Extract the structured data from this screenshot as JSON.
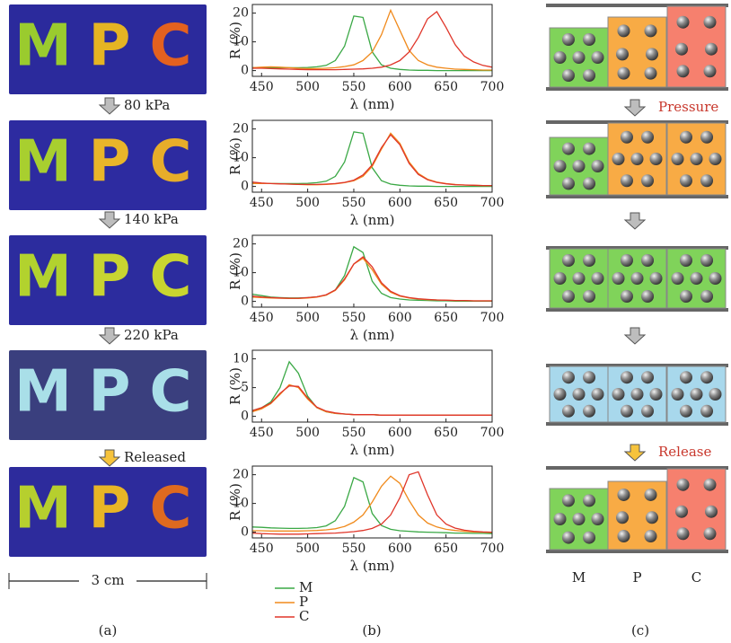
{
  "chart_data": [
    {
      "type": "line",
      "xlabel": "λ (nm)",
      "ylabel": "R (%)",
      "legend": true,
      "x": [
        440,
        450,
        460,
        470,
        480,
        490,
        500,
        510,
        520,
        530,
        540,
        550,
        560,
        570,
        580,
        590,
        600,
        610,
        620,
        630,
        640,
        650,
        660,
        670,
        680,
        690,
        700
      ],
      "xlim": [
        440,
        700
      ],
      "xticks": [
        450,
        500,
        550,
        600,
        650,
        700
      ],
      "ylim": [
        -2,
        23
      ],
      "yticks": [
        0,
        10,
        20
      ],
      "series": [
        {
          "name": "M",
          "color": "#3aa845",
          "values": [
            1.0,
            1.0,
            1.0,
            1.0,
            1.0,
            1.0,
            1.1,
            1.3,
            1.8,
            3.5,
            8.5,
            19.0,
            18.5,
            6.5,
            2.0,
            0.8,
            0.4,
            0.2,
            0.1,
            0.1,
            0,
            0,
            0,
            0,
            0,
            0,
            0
          ]
        },
        {
          "name": "P",
          "color": "#f08a1c",
          "values": [
            1.0,
            1.2,
            1.3,
            1.2,
            1.0,
            0.8,
            0.7,
            0.7,
            0.8,
            1.0,
            1.4,
            2.0,
            3.5,
            6.5,
            12.5,
            21.0,
            14.0,
            7.0,
            3.5,
            2.0,
            1.2,
            0.8,
            0.5,
            0.4,
            0.3,
            0.2,
            0.2
          ]
        },
        {
          "name": "C",
          "color": "#e0362a",
          "values": [
            0.8,
            0.8,
            0.7,
            0.6,
            0.5,
            0.4,
            0.3,
            0.3,
            0.3,
            0.3,
            0.4,
            0.5,
            0.6,
            0.8,
            1.2,
            2.0,
            3.5,
            6.5,
            11.5,
            18.0,
            20.5,
            15.0,
            9.0,
            5.0,
            3.0,
            1.8,
            1.2
          ]
        }
      ]
    },
    {
      "type": "line",
      "xlabel": "λ (nm)",
      "ylabel": "R (%)",
      "legend": false,
      "x": [
        440,
        450,
        460,
        470,
        480,
        490,
        500,
        510,
        520,
        530,
        540,
        550,
        560,
        570,
        580,
        590,
        600,
        610,
        620,
        630,
        640,
        650,
        660,
        670,
        680,
        690,
        700
      ],
      "xlim": [
        440,
        700
      ],
      "xticks": [
        450,
        500,
        550,
        600,
        650,
        700
      ],
      "ylim": [
        -2,
        23
      ],
      "yticks": [
        0,
        10,
        20
      ],
      "series": [
        {
          "name": "M",
          "color": "#3aa845",
          "values": [
            1.0,
            1.0,
            1.0,
            1.0,
            1.0,
            1.0,
            1.1,
            1.3,
            1.8,
            3.5,
            8.5,
            19.0,
            18.5,
            6.5,
            2.0,
            0.8,
            0.4,
            0.2,
            0.1,
            0.1,
            0,
            0,
            0,
            0,
            0,
            0,
            0
          ]
        },
        {
          "name": "P",
          "color": "#f08a1c",
          "values": [
            1.0,
            1.0,
            1.0,
            0.9,
            0.8,
            0.7,
            0.6,
            0.6,
            0.7,
            0.9,
            1.3,
            2.0,
            3.5,
            7.0,
            13.0,
            18.5,
            15.0,
            8.5,
            4.5,
            2.5,
            1.5,
            1.0,
            0.7,
            0.5,
            0.4,
            0.3,
            0.3
          ]
        },
        {
          "name": "C",
          "color": "#e0362a",
          "values": [
            1.5,
            1.2,
            1.0,
            0.9,
            0.8,
            0.7,
            0.7,
            0.7,
            0.8,
            1.0,
            1.4,
            2.2,
            4.0,
            7.5,
            13.5,
            18.0,
            14.5,
            8.0,
            4.2,
            2.3,
            1.4,
            0.9,
            0.6,
            0.5,
            0.4,
            0.3,
            0.3
          ]
        }
      ]
    },
    {
      "type": "line",
      "xlabel": "λ (nm)",
      "ylabel": "R (%)",
      "legend": false,
      "x": [
        440,
        450,
        460,
        470,
        480,
        490,
        500,
        510,
        520,
        530,
        540,
        550,
        560,
        570,
        580,
        590,
        600,
        610,
        620,
        630,
        640,
        650,
        660,
        670,
        680,
        690,
        700
      ],
      "xlim": [
        440,
        700
      ],
      "xticks": [
        450,
        500,
        550,
        600,
        650,
        700
      ],
      "ylim": [
        -2,
        23
      ],
      "yticks": [
        0,
        10,
        20
      ],
      "series": [
        {
          "name": "M",
          "color": "#3aa845",
          "values": [
            2.5,
            2.0,
            1.5,
            1.3,
            1.2,
            1.2,
            1.3,
            1.6,
            2.2,
            4.0,
            9.0,
            19.0,
            17.0,
            7.0,
            2.8,
            1.3,
            0.8,
            0.5,
            0.4,
            0.3,
            0.2,
            0.2,
            0.1,
            0.1,
            0.1,
            0.1,
            0.1
          ]
        },
        {
          "name": "P",
          "color": "#f08a1c",
          "values": [
            1.5,
            1.3,
            1.2,
            1.1,
            1.0,
            1.0,
            1.2,
            1.5,
            2.2,
            3.8,
            7.5,
            13.0,
            15.0,
            11.0,
            6.0,
            3.2,
            1.8,
            1.2,
            0.8,
            0.6,
            0.5,
            0.4,
            0.3,
            0.3,
            0.2,
            0.2,
            0.2
          ]
        },
        {
          "name": "C",
          "color": "#e0362a",
          "values": [
            1.8,
            1.5,
            1.3,
            1.2,
            1.1,
            1.1,
            1.3,
            1.6,
            2.3,
            4.0,
            7.8,
            13.0,
            15.5,
            12.0,
            6.5,
            3.5,
            2.0,
            1.3,
            0.9,
            0.7,
            0.5,
            0.4,
            0.3,
            0.3,
            0.2,
            0.2,
            0.2
          ]
        }
      ]
    },
    {
      "type": "line",
      "xlabel": "λ (nm)",
      "ylabel": "R (%)",
      "legend": false,
      "x": [
        440,
        450,
        460,
        470,
        480,
        490,
        500,
        510,
        520,
        530,
        540,
        550,
        560,
        570,
        580,
        590,
        600,
        610,
        620,
        630,
        640,
        650,
        660,
        670,
        680,
        690,
        700
      ],
      "xlim": [
        440,
        700
      ],
      "xticks": [
        450,
        500,
        550,
        600,
        650,
        700
      ],
      "ylim": [
        -1,
        11.5
      ],
      "yticks": [
        0,
        5,
        10
      ],
      "series": [
        {
          "name": "M",
          "color": "#3aa845",
          "values": [
            1.0,
            1.5,
            2.5,
            5.0,
            9.5,
            7.5,
            3.5,
            1.5,
            0.8,
            0.5,
            0.4,
            0.3,
            0.3,
            0.3,
            0.2,
            0.2,
            0.2,
            0.2,
            0.2,
            0.2,
            0.2,
            0.2,
            0.2,
            0.2,
            0.2,
            0.2,
            0.2
          ]
        },
        {
          "name": "P",
          "color": "#f08a1c",
          "values": [
            0.8,
            1.3,
            2.2,
            3.8,
            5.5,
            5.0,
            3.0,
            1.5,
            0.8,
            0.5,
            0.4,
            0.3,
            0.3,
            0.3,
            0.2,
            0.2,
            0.2,
            0.2,
            0.2,
            0.2,
            0.2,
            0.2,
            0.2,
            0.2,
            0.2,
            0.2,
            0.2
          ]
        },
        {
          "name": "C",
          "color": "#e0362a",
          "values": [
            1.0,
            1.5,
            2.3,
            4.0,
            5.3,
            5.2,
            3.2,
            1.6,
            0.9,
            0.6,
            0.4,
            0.3,
            0.3,
            0.3,
            0.2,
            0.2,
            0.2,
            0.2,
            0.2,
            0.2,
            0.2,
            0.2,
            0.2,
            0.2,
            0.2,
            0.2,
            0.2
          ]
        }
      ]
    },
    {
      "type": "line",
      "xlabel": "λ (nm)",
      "ylabel": "R (%)",
      "legend": false,
      "x": [
        440,
        450,
        460,
        470,
        480,
        490,
        500,
        510,
        520,
        530,
        540,
        550,
        560,
        570,
        580,
        590,
        600,
        610,
        620,
        630,
        640,
        650,
        660,
        670,
        680,
        690,
        700
      ],
      "xlim": [
        440,
        700
      ],
      "xticks": [
        450,
        500,
        550,
        600,
        650,
        700
      ],
      "ylim": [
        -2,
        23
      ],
      "yticks": [
        0,
        10,
        20
      ],
      "series": [
        {
          "name": "M",
          "color": "#3aa845",
          "values": [
            1.8,
            1.7,
            1.5,
            1.4,
            1.3,
            1.3,
            1.4,
            1.6,
            2.2,
            4.0,
            9.0,
            19.0,
            17.5,
            6.5,
            2.3,
            1.0,
            0.5,
            0.3,
            0.1,
            0,
            -0.1,
            -0.2,
            -0.3,
            -0.3,
            -0.4,
            -0.4,
            -0.5
          ]
        },
        {
          "name": "P",
          "color": "#f08a1c",
          "values": [
            0.5,
            0.5,
            0.4,
            0.4,
            0.4,
            0.4,
            0.5,
            0.6,
            0.8,
            1.2,
            2.0,
            3.5,
            6.0,
            10.5,
            16.0,
            19.5,
            17.0,
            11.0,
            6.0,
            3.2,
            1.8,
            1.0,
            0.6,
            0.3,
            0.1,
            0,
            -0.1
          ]
        },
        {
          "name": "C",
          "color": "#e0362a",
          "values": [
            -0.3,
            -0.5,
            -0.6,
            -0.7,
            -0.7,
            -0.7,
            -0.6,
            -0.5,
            -0.4,
            -0.3,
            -0.1,
            0.2,
            0.6,
            1.3,
            2.8,
            6.0,
            12.0,
            20.0,
            21.0,
            13.0,
            6.0,
            2.8,
            1.4,
            0.7,
            0.3,
            0.1,
            0
          ]
        }
      ]
    }
  ],
  "panel_a": {
    "letters": [
      "M",
      "P",
      "C"
    ],
    "steps": [
      "80 kPa",
      "140 kPa",
      "220 kPa",
      "Released"
    ],
    "scale": "3 cm",
    "label": "(a)"
  },
  "panel_b": {
    "label": "(b)"
  },
  "panel_c": {
    "pressure": "Pressure",
    "release": "Release",
    "columns": [
      "M",
      "P",
      "C"
    ],
    "label": "(c)"
  }
}
